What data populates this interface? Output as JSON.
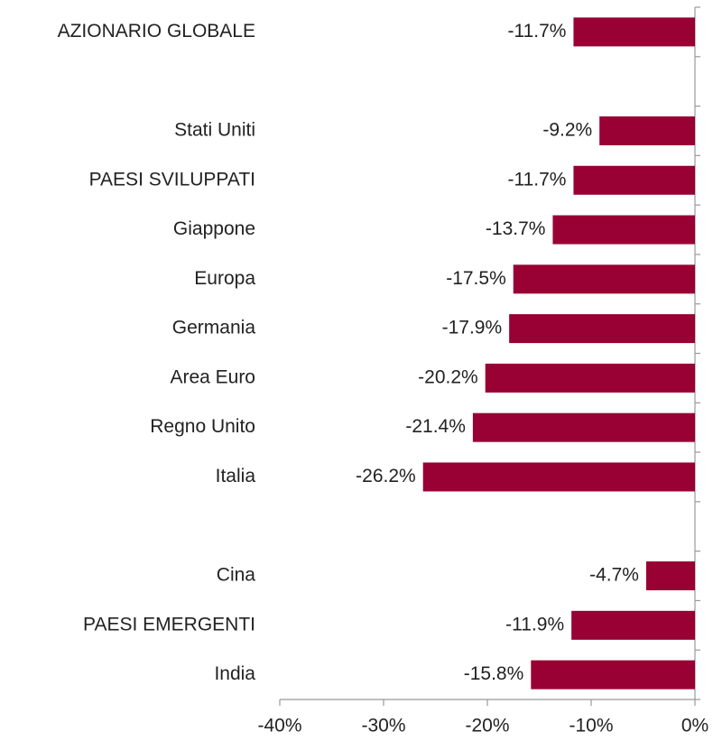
{
  "chart_data": {
    "type": "bar",
    "orientation": "horizontal",
    "categories": [
      "AZIONARIO GLOBALE",
      null,
      "Stati Uniti",
      "PAESI SVILUPPATI",
      "Giappone",
      "Europa",
      "Germania",
      "Area Euro",
      "Regno Unito",
      "Italia",
      null,
      "Cina",
      "PAESI EMERGENTI",
      "India"
    ],
    "values": [
      -11.7,
      null,
      -9.2,
      -11.7,
      -13.7,
      -17.5,
      -17.9,
      -20.2,
      -21.4,
      -26.2,
      null,
      -4.7,
      -11.9,
      -15.8
    ],
    "value_labels": [
      "-11.7%",
      null,
      "-9.2%",
      "-11.7%",
      "-13.7%",
      "-17.5%",
      "-17.9%",
      "-20.2%",
      "-21.4%",
      "-26.2%",
      null,
      "-4.7%",
      "-11.9%",
      "-15.8%"
    ],
    "color": "#990033",
    "xlim": [
      -40,
      0
    ],
    "xticks": [
      {
        "value": -40,
        "label": "-40%"
      },
      {
        "value": -30,
        "label": "-30%"
      },
      {
        "value": -20,
        "label": "-20%"
      },
      {
        "value": -10,
        "label": "-10%"
      },
      {
        "value": 0,
        "label": "0%"
      }
    ]
  }
}
